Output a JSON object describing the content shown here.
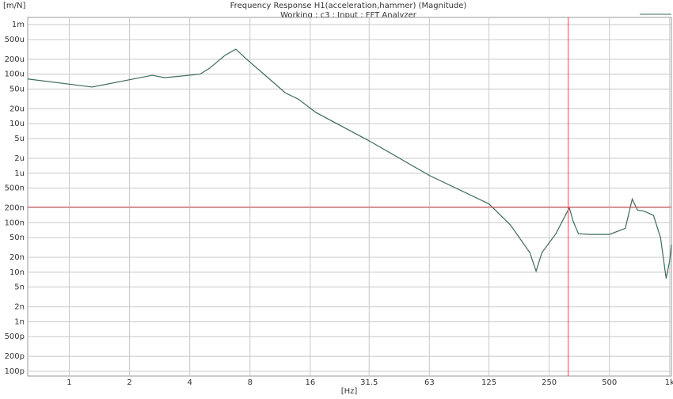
{
  "chart_data": {
    "type": "line",
    "title": "Frequency Response H1(acceleration,hammer) (Magnitude)",
    "subtitle": "Working : c3 : Input : FFT Analyzer",
    "x_label": "[Hz]",
    "y_label": "[m/N]",
    "x_scale": "log",
    "y_scale": "log",
    "grid": true,
    "xlim": [
      0.62,
      1020
    ],
    "ylim": [
      8e-11,
      0.0014
    ],
    "xticks": [
      1,
      2,
      4,
      8,
      16,
      31.5,
      63,
      125,
      250,
      500,
      {
        "value": 1000,
        "label": "1k"
      }
    ],
    "yticks": [
      {
        "value": 0.001,
        "label": "1m"
      },
      {
        "value": 0.0005,
        "label": "500u"
      },
      {
        "value": 0.0002,
        "label": "200u"
      },
      {
        "value": 0.0001,
        "label": "100u"
      },
      {
        "value": 5e-05,
        "label": "50u"
      },
      {
        "value": 2e-05,
        "label": "20u"
      },
      {
        "value": 1e-05,
        "label": "10u"
      },
      {
        "value": 5e-06,
        "label": "5u"
      },
      {
        "value": 2e-06,
        "label": "2u"
      },
      {
        "value": 1e-06,
        "label": "1u"
      },
      {
        "value": 5e-07,
        "label": "500n"
      },
      {
        "value": 2e-07,
        "label": "200n"
      },
      {
        "value": 1e-07,
        "label": "100n"
      },
      {
        "value": 5e-08,
        "label": "50n"
      },
      {
        "value": 2e-08,
        "label": "20n"
      },
      {
        "value": 1e-08,
        "label": "10n"
      },
      {
        "value": 5e-09,
        "label": "5n"
      },
      {
        "value": 2e-09,
        "label": "2n"
      },
      {
        "value": 1e-09,
        "label": "1n"
      },
      {
        "value": 5e-10,
        "label": "500p"
      },
      {
        "value": 2e-10,
        "label": "200p"
      },
      {
        "value": 1e-10,
        "label": "100p"
      }
    ],
    "x": [
      0.62,
      1.3,
      2.6,
      3,
      4.5,
      5,
      6,
      6.8,
      7.5,
      10,
      12,
      14,
      17,
      31.5,
      63,
      125,
      160,
      200,
      215,
      230,
      270,
      315,
      330,
      350,
      400,
      500,
      600,
      650,
      690,
      750,
      830,
      900,
      960,
      1000,
      1020
    ],
    "series": [
      {
        "color": "#3d6b5a",
        "values": [
          8e-05,
          5.5e-05,
          9.5e-05,
          8.5e-05,
          0.0001,
          0.00013,
          0.00024,
          0.00032,
          0.00022,
          8e-05,
          4.2e-05,
          3.1e-05,
          1.7e-05,
          4.5e-06,
          9e-07,
          2.4e-07,
          9e-08,
          2.5e-08,
          1.05e-08,
          2.5e-08,
          6e-08,
          2e-07,
          1.05e-07,
          6e-08,
          5.8e-08,
          5.8e-08,
          7.7e-08,
          3e-07,
          1.8e-07,
          1.7e-07,
          1.4e-07,
          5e-08,
          7.5e-09,
          1.7e-08,
          3.6e-08
        ]
      }
    ],
    "cursor": {
      "x": 311,
      "y": 2.07e-07,
      "color": "#e05050"
    }
  }
}
